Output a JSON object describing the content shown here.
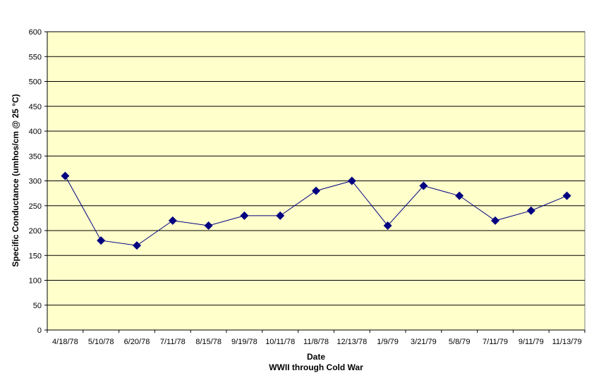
{
  "chart_data": {
    "type": "line",
    "title": "",
    "xlabel": "Date",
    "xlabel_sub": "WWII through Cold War",
    "ylabel": "Specific Conductance (umhos/cm @ 25 °C)",
    "ylim": [
      0,
      600
    ],
    "yticks": [
      0,
      50,
      100,
      150,
      200,
      250,
      300,
      350,
      400,
      450,
      500,
      550,
      600
    ],
    "ytick_labels": [
      "0",
      "50",
      "100",
      "150",
      "200",
      "250",
      "300",
      "350",
      "400",
      "450",
      "500",
      "550",
      "600"
    ],
    "grid": true,
    "legend": "none",
    "categories": [
      "4/18/78",
      "5/10/78",
      "6/20/78",
      "7/11/78",
      "8/15/78",
      "9/19/78",
      "10/11/78",
      "11/8/78",
      "12/13/78",
      "1/9/79",
      "3/21/79",
      "5/8/79",
      "7/11/79",
      "9/11/79",
      "11/13/79"
    ],
    "series": [
      {
        "values": [
          310,
          180,
          170,
          220,
          210,
          230,
          230,
          280,
          300,
          210,
          290,
          270,
          220,
          240,
          270
        ]
      }
    ],
    "colors": {
      "plot_background": "#ffffcc",
      "gridline": "#000000",
      "line": "#000080",
      "marker": "#000080"
    },
    "marker": "diamond"
  }
}
